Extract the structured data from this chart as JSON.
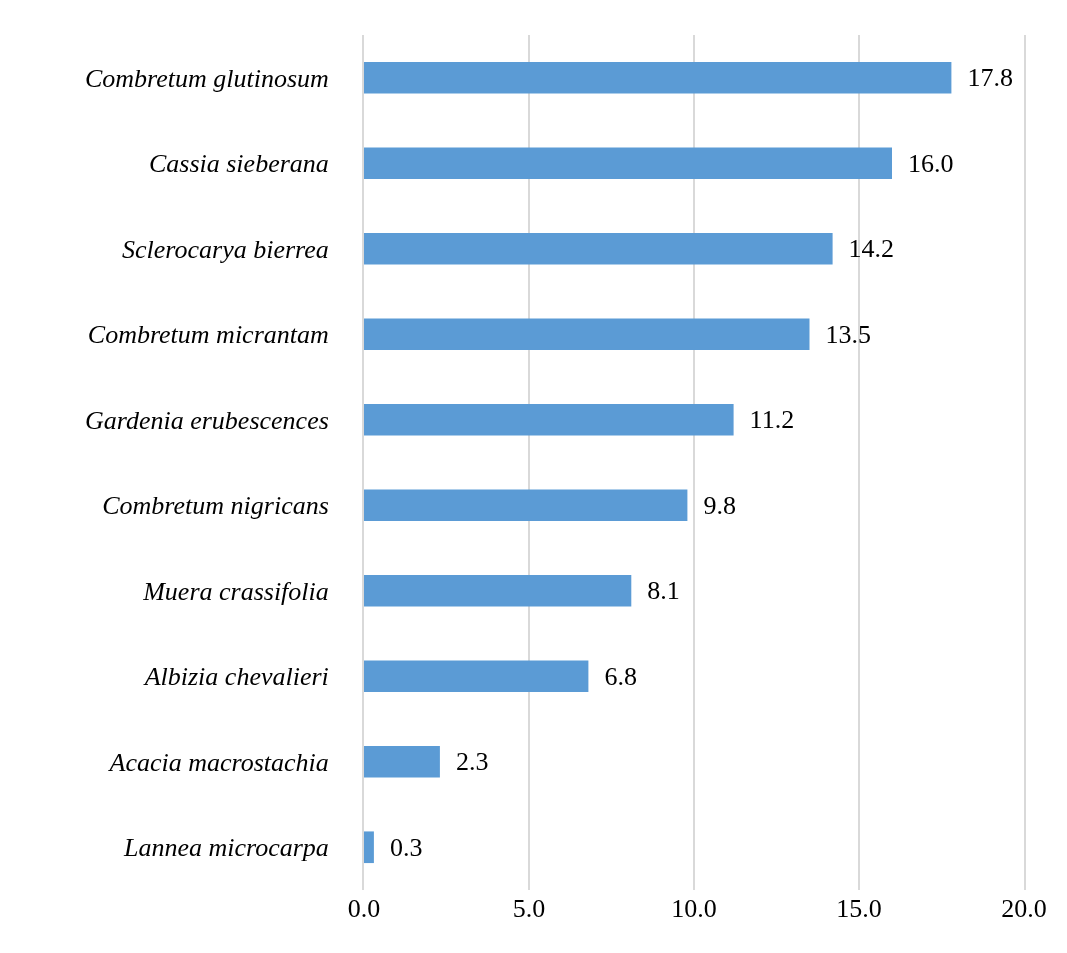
{
  "chart_data": {
    "type": "bar",
    "orientation": "horizontal",
    "categories": [
      "Combretum glutinosum",
      "Cassia sieberana",
      "Sclerocarya bierrea",
      "Combretum micrantam",
      "Gardenia erubescences",
      "Combretum nigricans",
      "Muera crassifolia",
      "Albizia chevalieri",
      "Acacia macrostachia",
      "Lannea microcarpa"
    ],
    "values": [
      17.8,
      16.0,
      14.2,
      13.5,
      11.2,
      9.8,
      8.1,
      6.8,
      2.3,
      0.3
    ],
    "color": "#5b9bd5",
    "xlim": [
      0,
      20
    ],
    "xticks": [
      {
        "value": 0,
        "label": "0.0"
      },
      {
        "value": 5,
        "label": "5.0"
      },
      {
        "value": 10,
        "label": "10.0"
      },
      {
        "value": 15,
        "label": "15.0"
      },
      {
        "value": 20,
        "label": "20.0"
      }
    ],
    "value_labels": [
      "17.8",
      "16.0",
      "14.2",
      "13.5",
      "11.2",
      "9.8",
      "8.1",
      "6.8",
      "2.3",
      "0.3"
    ],
    "grid": "x"
  }
}
